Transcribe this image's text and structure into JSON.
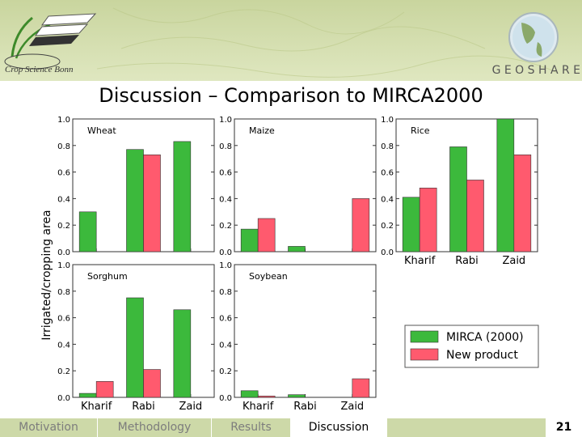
{
  "slide": {
    "title": "Discussion – Comparison to MIRCA2000",
    "logo_text": "Crop Science Bonn",
    "brand": "G E O S H A R E",
    "page_number": "21"
  },
  "nav": {
    "items": [
      "Motivation",
      "Methodology",
      "Results",
      "Discussion"
    ],
    "active": "Discussion"
  },
  "colors": {
    "series_mirca": "#3cb93c",
    "series_new": "#ff5a6e",
    "banner": "#d2dcae",
    "footer": "#cdd9a8"
  },
  "chart_data": {
    "type": "bar",
    "ylabel": "Irrigated/cropping area",
    "ylim": [
      0,
      1.0
    ],
    "yticks": [
      "0.0",
      "0.2",
      "0.4",
      "0.6",
      "0.8",
      "1.0"
    ],
    "categories": [
      "Kharif",
      "Rabi",
      "Zaid"
    ],
    "legend": {
      "placement": "lower-right",
      "entries": [
        "MIRCA (2000)",
        "New product"
      ]
    },
    "grid": false,
    "panels": [
      {
        "crop": "Wheat",
        "series": [
          {
            "name": "MIRCA (2000)",
            "values": [
              0.3,
              0.77,
              0.83
            ]
          },
          {
            "name": "New product",
            "values": [
              0.0,
              0.73,
              0.0
            ]
          }
        ]
      },
      {
        "crop": "Maize",
        "series": [
          {
            "name": "MIRCA (2000)",
            "values": [
              0.17,
              0.04,
              0.0
            ]
          },
          {
            "name": "New product",
            "values": [
              0.25,
              0.0,
              0.4
            ]
          }
        ]
      },
      {
        "crop": "Rice",
        "series": [
          {
            "name": "MIRCA (2000)",
            "values": [
              0.41,
              0.79,
              1.0
            ]
          },
          {
            "name": "New product",
            "values": [
              0.48,
              0.54,
              0.73
            ]
          }
        ]
      },
      {
        "crop": "Sorghum",
        "series": [
          {
            "name": "MIRCA (2000)",
            "values": [
              0.03,
              0.75,
              0.66
            ]
          },
          {
            "name": "New product",
            "values": [
              0.12,
              0.21,
              0.0
            ]
          }
        ]
      },
      {
        "crop": "Soybean",
        "series": [
          {
            "name": "MIRCA (2000)",
            "values": [
              0.05,
              0.02,
              0.0
            ]
          },
          {
            "name": "New product",
            "values": [
              0.01,
              0.0,
              0.14
            ]
          }
        ]
      }
    ]
  }
}
